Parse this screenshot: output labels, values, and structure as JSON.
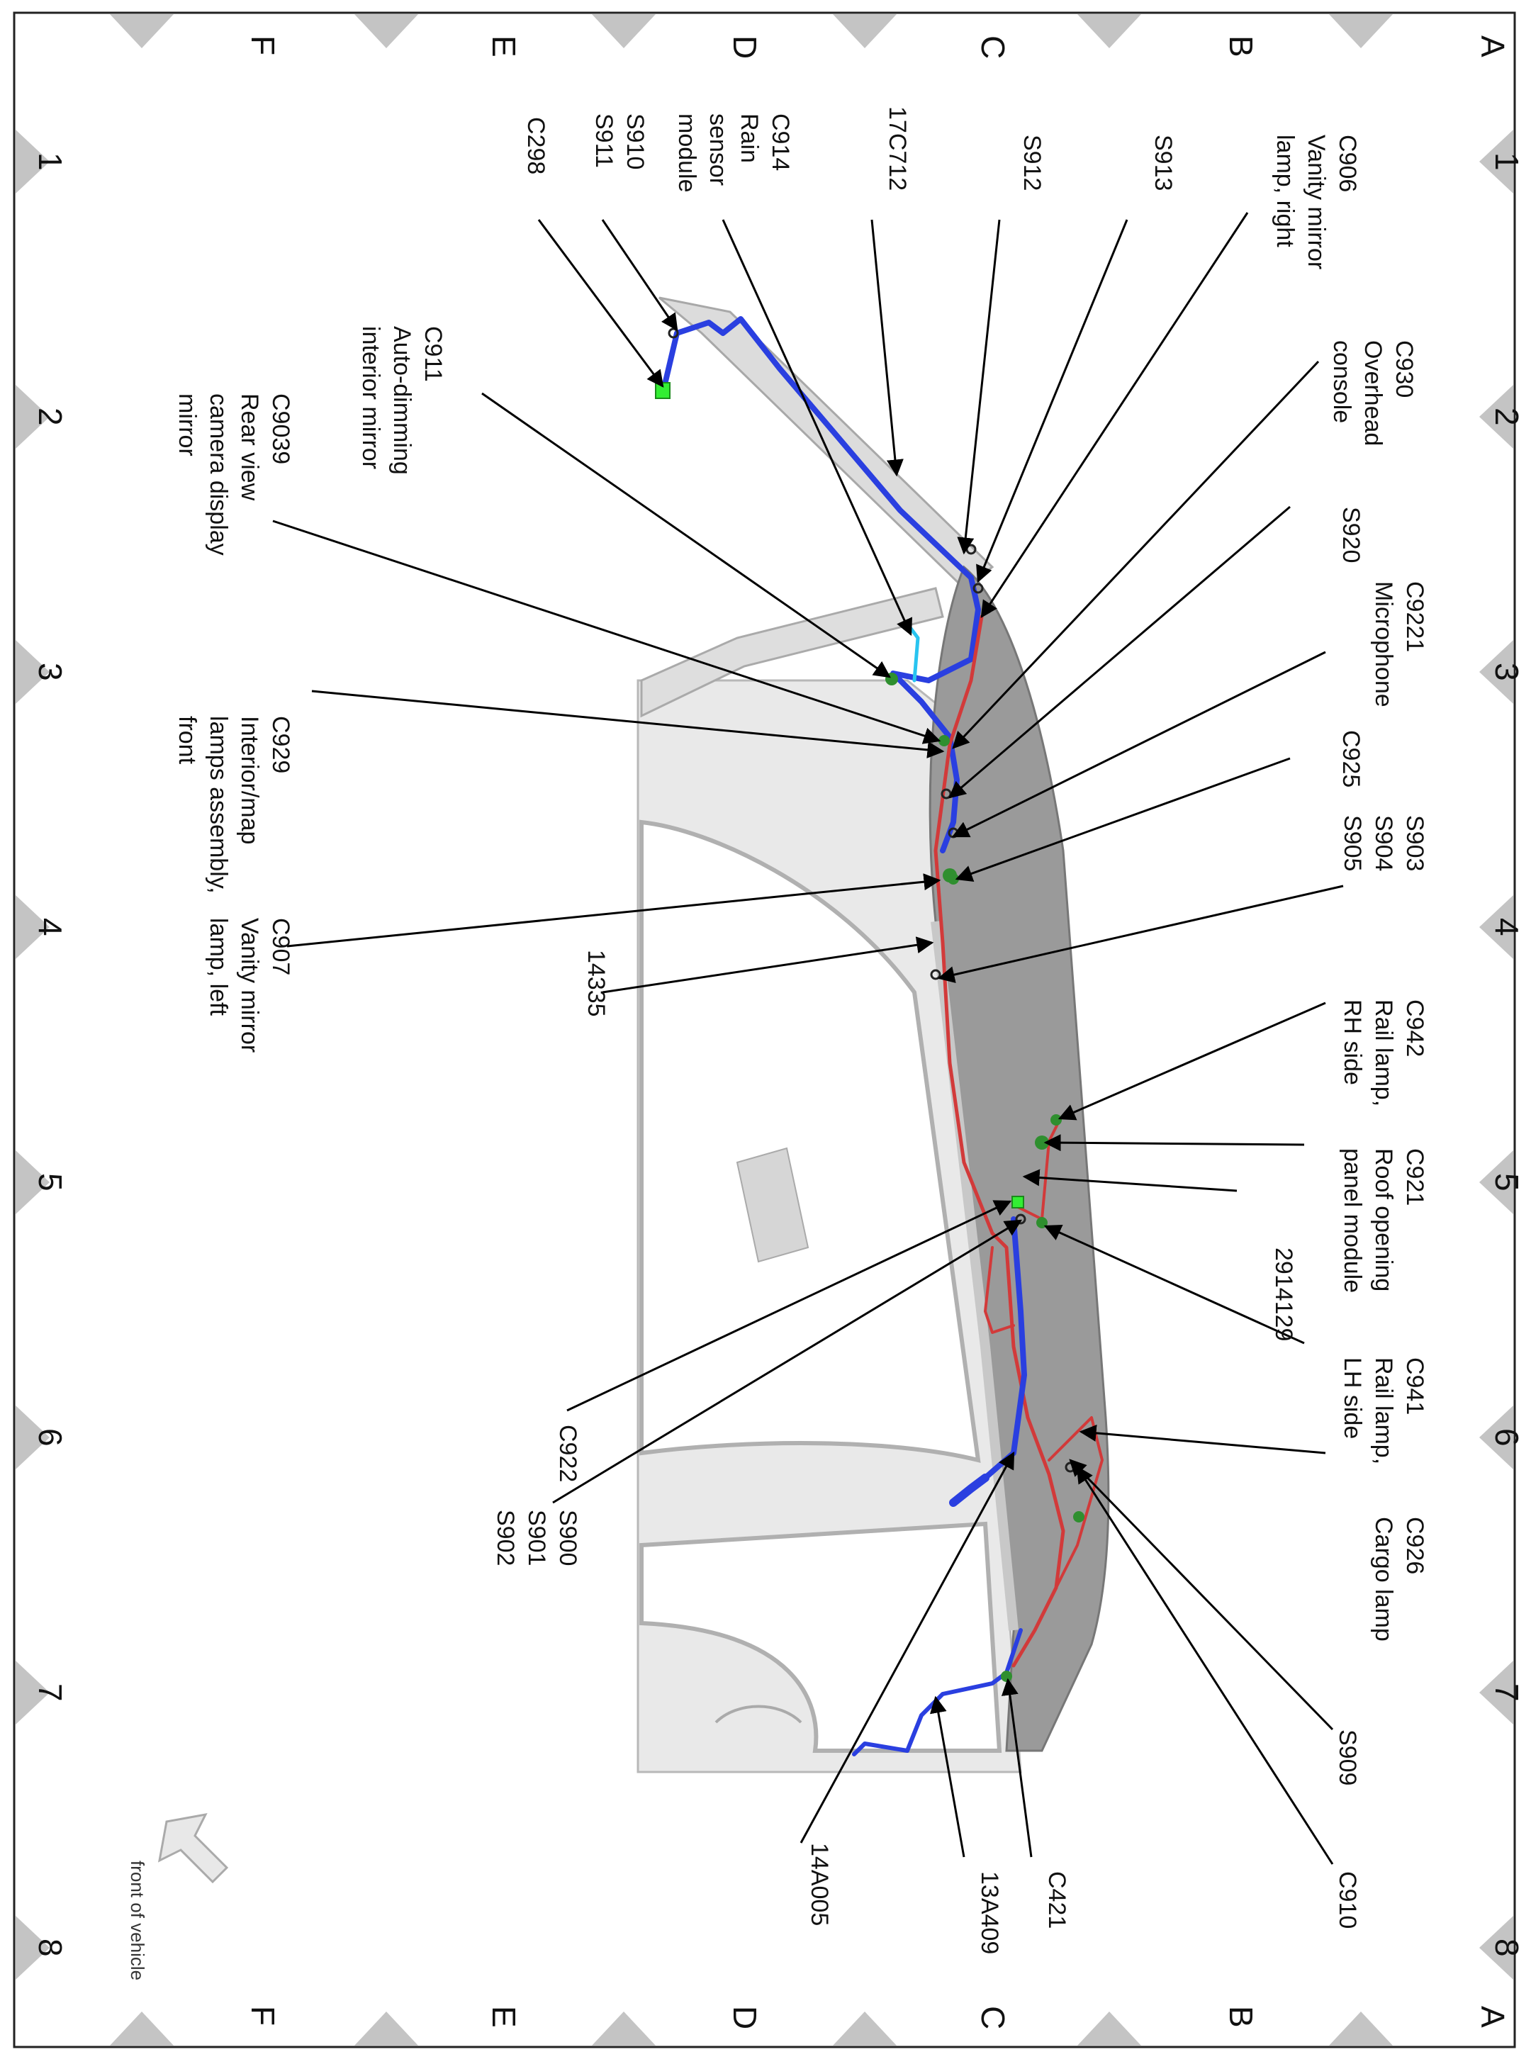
{
  "grid": {
    "numbers": [
      "1",
      "2",
      "3",
      "4",
      "5",
      "6",
      "7",
      "8"
    ],
    "letters": [
      "A",
      "B",
      "C",
      "D",
      "E",
      "F"
    ]
  },
  "front_of_vehicle": "front of vehicle",
  "callouts": {
    "c906": [
      "C906",
      "Vanity mirror",
      "lamp, right"
    ],
    "c930": [
      "C930",
      "Overhead",
      "console"
    ],
    "s913": [
      "S913"
    ],
    "s912": [
      "S912"
    ],
    "c17c712": [
      "17C712"
    ],
    "c914": [
      "C914",
      "Rain",
      "sensor",
      "module"
    ],
    "s910": [
      "S910",
      "S911"
    ],
    "c298": [
      "C298"
    ],
    "c911": [
      "C911",
      "Auto-dimming",
      "interior mirror"
    ],
    "c9039": [
      "C9039",
      "Rear view",
      "camera display",
      "mirror"
    ],
    "s920": [
      "S920"
    ],
    "c9221": [
      "C9221",
      "Microphone"
    ],
    "c925": [
      "C925"
    ],
    "s903": [
      "S903",
      "S904",
      "S905"
    ],
    "c929": [
      "C929",
      "Interior/map",
      "lamps assembly,",
      "front"
    ],
    "c907": [
      "C907",
      "Vanity mirror",
      "lamp, left"
    ],
    "c14335": [
      "14335"
    ],
    "c942": [
      "C942",
      "Rail lamp,",
      "RH side"
    ],
    "c921": [
      "C921",
      "Roof opening",
      "panel module"
    ],
    "c2914129": [
      "2914129"
    ],
    "c941": [
      "C941",
      "Rail lamp,",
      "LH side"
    ],
    "c922": [
      "C922"
    ],
    "s900": [
      "S900",
      "S901",
      "S902"
    ],
    "c926": [
      "C926",
      "Cargo lamp"
    ],
    "s909": [
      "S909"
    ],
    "c910": [
      "C910"
    ],
    "c421": [
      "C421"
    ],
    "c13a409": [
      "13A409"
    ],
    "c14a005": [
      "14A005"
    ]
  },
  "colors": {
    "harness_blue": "#2a3fe0",
    "harness_red": "#d23a3a",
    "connector_green": "#2f8f2f",
    "connector_bright": "#33ee33",
    "body_gray": "#cfcfcf",
    "roof_gray": "#9a9a9a",
    "triangle_gray": "#c4c4c4"
  }
}
